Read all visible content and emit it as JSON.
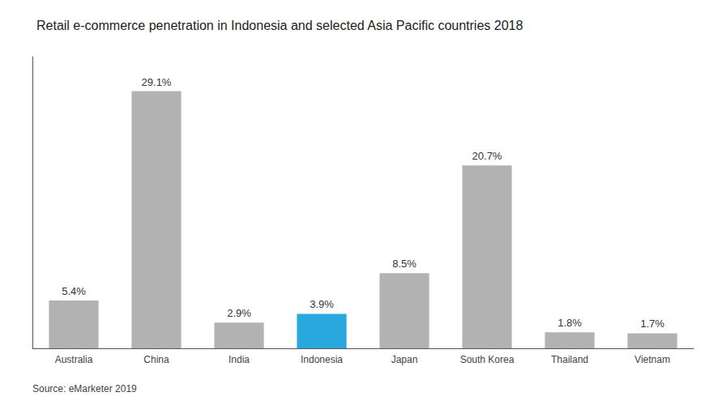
{
  "chart_data": {
    "type": "bar",
    "title": "Retail e-commerce penetration in Indonesia and selected Asia Pacific countries 2018",
    "categories": [
      "Australia",
      "China",
      "India",
      "Indonesia",
      "Japan",
      "South Korea",
      "Thailand",
      "Vietnam"
    ],
    "values": [
      5.4,
      29.1,
      2.9,
      3.9,
      8.5,
      20.7,
      1.8,
      1.7
    ],
    "value_labels": [
      "5.4%",
      "29.1%",
      "2.9%",
      "3.9%",
      "8.5%",
      "20.7%",
      "1.8%",
      "1.7%"
    ],
    "colors": [
      "#b2b2b2",
      "#b2b2b2",
      "#b2b2b2",
      "#29a8e0",
      "#b2b2b2",
      "#b2b2b2",
      "#b2b2b2",
      "#b2b2b2"
    ],
    "data_labels": true,
    "ylim": [
      0,
      33
    ],
    "grid": false,
    "tick_labels": "x",
    "source": "Source: eMarketer 2019"
  }
}
